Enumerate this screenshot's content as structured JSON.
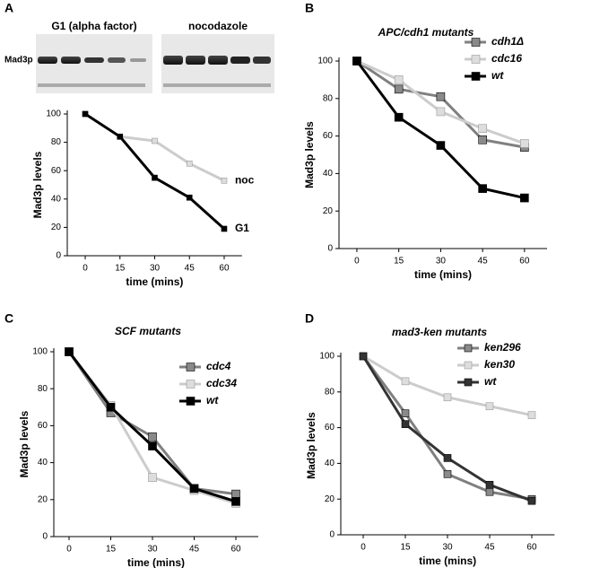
{
  "chart_data": [
    {
      "type": "line",
      "panel": "A",
      "blot_titles": [
        "G1 (alpha factor)",
        "nocodazole"
      ],
      "blot_protein": "Mad3p",
      "x": [
        0,
        15,
        30,
        45,
        60
      ],
      "xlim": [
        -10,
        70
      ],
      "xticks": [
        0,
        15,
        30,
        45,
        60
      ],
      "ylim": [
        0,
        100
      ],
      "yticks": [
        0,
        20,
        40,
        60,
        80,
        100
      ],
      "x_label": "time (mins)",
      "y_label": "Mad3p levels",
      "legend": "direct",
      "series": [
        {
          "name": "noc",
          "color": "#cccccc",
          "values": [
            100,
            84,
            81,
            65,
            53
          ]
        },
        {
          "name": "G1",
          "color": "#000000",
          "values": [
            100,
            84,
            55,
            41,
            19
          ]
        }
      ]
    },
    {
      "type": "line",
      "panel": "B",
      "title": "APC/cdh1 mutants",
      "x": [
        0,
        15,
        30,
        45,
        60
      ],
      "xlim": [
        -10,
        70
      ],
      "xticks": [
        0,
        15,
        30,
        45,
        60
      ],
      "ylim": [
        0,
        100
      ],
      "yticks": [
        0,
        20,
        40,
        60,
        80,
        100
      ],
      "x_label": "time (mins)",
      "y_label": "Mad3p levels",
      "legend": "upper right",
      "series": [
        {
          "name": "cdh1Δ",
          "color": "#808080",
          "values": [
            100,
            85,
            81,
            58,
            54
          ]
        },
        {
          "name": "cdc16",
          "color": "#cccccc",
          "values": [
            100,
            90,
            73,
            64,
            56
          ]
        },
        {
          "name": "wt",
          "color": "#000000",
          "values": [
            100,
            70,
            55,
            32,
            27
          ]
        }
      ]
    },
    {
      "type": "line",
      "panel": "C",
      "title": "SCF mutants",
      "x": [
        0,
        15,
        30,
        45,
        60
      ],
      "xlim": [
        -10,
        70
      ],
      "xticks": [
        0,
        15,
        30,
        45,
        60
      ],
      "ylim": [
        0,
        100
      ],
      "yticks": [
        0,
        20,
        40,
        60,
        80,
        100
      ],
      "x_label": "time (mins)",
      "y_label": "Mad3p levels",
      "legend": "upper right",
      "series": [
        {
          "name": "cdc4",
          "color": "#808080",
          "values": [
            100,
            67,
            54,
            26,
            23
          ]
        },
        {
          "name": "cdc34",
          "color": "#cccccc",
          "values": [
            100,
            71,
            32,
            25,
            18
          ]
        },
        {
          "name": "wt",
          "color": "#000000",
          "values": [
            100,
            70,
            49,
            26,
            19
          ]
        }
      ]
    },
    {
      "type": "line",
      "panel": "D",
      "title": "mad3-ken mutants",
      "x": [
        0,
        15,
        30,
        45,
        60
      ],
      "xlim": [
        -10,
        70
      ],
      "xticks": [
        0,
        15,
        30,
        45,
        60
      ],
      "ylim": [
        0,
        100
      ],
      "yticks": [
        0,
        20,
        40,
        60,
        80,
        100
      ],
      "x_label": "time (mins)",
      "y_label": "Mad3p levels",
      "legend": "upper right",
      "series": [
        {
          "name": "ken296",
          "color": "#808080",
          "values": [
            100,
            68,
            34,
            24,
            20
          ]
        },
        {
          "name": "ken30",
          "color": "#cccccc",
          "values": [
            100,
            86,
            77,
            72,
            67
          ]
        },
        {
          "name": "wt",
          "color": "#333333",
          "values": [
            100,
            62,
            43,
            28,
            19
          ]
        }
      ]
    }
  ]
}
